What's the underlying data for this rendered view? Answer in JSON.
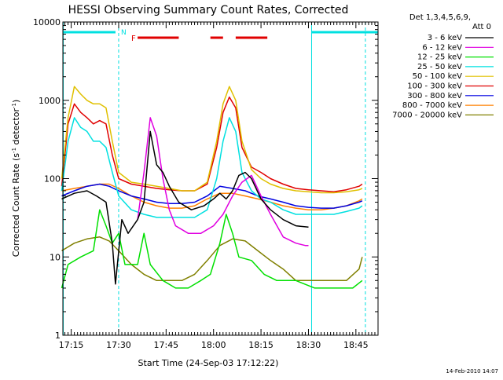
{
  "chart_data": {
    "type": "line",
    "title": "HESSI Observing Summary Count Rates, Corrected",
    "xlabel": "Start Time (24-Sep-03 17:12:22)",
    "ylabel_main": "Corrected Count Rate (s",
    "ylabel_sup1": "-1",
    "ylabel_mid": " detector",
    "ylabel_sup2": "-1",
    "ylabel_end": ")",
    "y_scale": "log",
    "ylim": [
      1,
      10000
    ],
    "xlim": [
      "17:12:22",
      "18:52:00"
    ],
    "x_ticks": [
      "17:15",
      "17:30",
      "17:45",
      "18:00",
      "18:15",
      "18:30",
      "18:45"
    ],
    "y_ticks": [
      "1",
      "10",
      "100",
      "1000",
      "10000"
    ],
    "legend_header_1": "Det 1,3,4,5,6,9,",
    "legend_header_2": "Att 0",
    "legend_position": "right",
    "timestamp": "14-Feb-2010 14:07",
    "flags": {
      "night_label": "N",
      "flare_label": "F",
      "night_color": "#00e0e0",
      "flare_color": "#e00000",
      "night_bars": [
        [
          "17:12:22",
          "17:29"
        ],
        [
          "18:31",
          "18:52"
        ]
      ],
      "flare_bars": [
        [
          "17:36",
          "17:49"
        ],
        [
          "17:59",
          "18:03"
        ],
        [
          "18:07",
          "18:17"
        ]
      ],
      "night_dashed_lines": [
        "17:30",
        "18:48"
      ],
      "boundary_solid_lines": [
        "17:12:30",
        "18:31"
      ]
    },
    "series": [
      {
        "name": "3 - 6 keV",
        "color": "#000000",
        "points": [
          [
            "17:12",
            "55"
          ],
          [
            "17:16",
            "65"
          ],
          [
            "17:20",
            "70"
          ],
          [
            "17:23",
            "60"
          ],
          [
            "17:26",
            "50"
          ],
          [
            "17:28",
            "15"
          ],
          [
            "17:29",
            "4.5"
          ],
          [
            "17:31",
            "30"
          ],
          [
            "17:33",
            "20"
          ],
          [
            "17:36",
            "30"
          ],
          [
            "17:38",
            "50"
          ],
          [
            "17:40",
            "400"
          ],
          [
            "17:42",
            "150"
          ],
          [
            "17:44",
            "120"
          ],
          [
            "17:46",
            "80"
          ],
          [
            "17:49",
            "50"
          ],
          [
            "17:53",
            "40"
          ],
          [
            "17:57",
            "45"
          ],
          [
            "18:00",
            "55"
          ],
          [
            "18:02",
            "65"
          ],
          [
            "18:04",
            "55"
          ],
          [
            "18:06",
            "70"
          ],
          [
            "18:08",
            "110"
          ],
          [
            "18:10",
            "120"
          ],
          [
            "18:12",
            "100"
          ],
          [
            "18:15",
            "55"
          ],
          [
            "18:18",
            "40"
          ],
          [
            "18:22",
            "30"
          ],
          [
            "18:26",
            "25"
          ],
          [
            "18:30",
            "24"
          ]
        ]
      },
      {
        "name": "6 - 12 keV",
        "color": "#e000e0",
        "points": [
          [
            "17:36",
            "30"
          ],
          [
            "17:38",
            "120"
          ],
          [
            "17:40",
            "600"
          ],
          [
            "17:42",
            "350"
          ],
          [
            "17:44",
            "100"
          ],
          [
            "17:46",
            "40"
          ],
          [
            "17:48",
            "25"
          ],
          [
            "17:52",
            "20"
          ],
          [
            "17:56",
            "20"
          ],
          [
            "18:00",
            "25"
          ],
          [
            "18:03",
            "35"
          ],
          [
            "18:06",
            "60"
          ],
          [
            "18:09",
            "90"
          ],
          [
            "18:12",
            "110"
          ],
          [
            "18:15",
            "60"
          ],
          [
            "18:18",
            "35"
          ],
          [
            "18:22",
            "18"
          ],
          [
            "18:26",
            "15"
          ],
          [
            "18:29",
            "14"
          ],
          [
            "18:30",
            "14"
          ]
        ]
      },
      {
        "name": "12 - 25 keV",
        "color": "#00e000",
        "points": [
          [
            "17:12",
            "4"
          ],
          [
            "17:14",
            "8"
          ],
          [
            "17:18",
            "10"
          ],
          [
            "17:22",
            "12"
          ],
          [
            "17:24",
            "40"
          ],
          [
            "17:26",
            "25"
          ],
          [
            "17:28",
            "15"
          ],
          [
            "17:30",
            "20"
          ],
          [
            "17:32",
            "8"
          ],
          [
            "17:36",
            "8"
          ],
          [
            "17:38",
            "20"
          ],
          [
            "17:40",
            "8"
          ],
          [
            "17:44",
            "5"
          ],
          [
            "17:48",
            "4"
          ],
          [
            "17:52",
            "4"
          ],
          [
            "17:56",
            "5"
          ],
          [
            "17:59",
            "6"
          ],
          [
            "18:02",
            "15"
          ],
          [
            "18:04",
            "35"
          ],
          [
            "18:06",
            "20"
          ],
          [
            "18:08",
            "10"
          ],
          [
            "18:12",
            "9"
          ],
          [
            "18:16",
            "6"
          ],
          [
            "18:20",
            "5"
          ],
          [
            "18:26",
            "5"
          ],
          [
            "18:32",
            "4"
          ],
          [
            "18:38",
            "4"
          ],
          [
            "18:44",
            "4"
          ],
          [
            "18:47",
            "5"
          ]
        ]
      },
      {
        "name": "25 - 50 keV",
        "color": "#00e0e0",
        "points": [
          [
            "17:12",
            "70"
          ],
          [
            "17:14",
            "300"
          ],
          [
            "17:16",
            "600"
          ],
          [
            "17:18",
            "450"
          ],
          [
            "17:20",
            "400"
          ],
          [
            "17:22",
            "300"
          ],
          [
            "17:24",
            "300"
          ],
          [
            "17:26",
            "250"
          ],
          [
            "17:28",
            "120"
          ],
          [
            "17:30",
            "60"
          ],
          [
            "17:34",
            "40"
          ],
          [
            "17:38",
            "35"
          ],
          [
            "17:42",
            "32"
          ],
          [
            "17:46",
            "32"
          ],
          [
            "17:50",
            "32"
          ],
          [
            "17:54",
            "32"
          ],
          [
            "17:58",
            "40"
          ],
          [
            "18:01",
            "100"
          ],
          [
            "18:03",
            "300"
          ],
          [
            "18:05",
            "600"
          ],
          [
            "18:07",
            "400"
          ],
          [
            "18:09",
            "120"
          ],
          [
            "18:12",
            "70"
          ],
          [
            "18:15",
            "55"
          ],
          [
            "18:18",
            "50"
          ],
          [
            "18:22",
            "40"
          ],
          [
            "18:26",
            "35"
          ],
          [
            "18:30",
            "35"
          ],
          [
            "18:34",
            "35"
          ],
          [
            "18:38",
            "35"
          ],
          [
            "18:42",
            "38"
          ],
          [
            "18:46",
            "42"
          ],
          [
            "18:47",
            "45"
          ]
        ]
      },
      {
        "name": "50 - 100 keV",
        "color": "#e0c000",
        "points": [
          [
            "17:12",
            "100"
          ],
          [
            "17:14",
            "600"
          ],
          [
            "17:16",
            "1500"
          ],
          [
            "17:18",
            "1200"
          ],
          [
            "17:20",
            "1000"
          ],
          [
            "17:22",
            "900"
          ],
          [
            "17:24",
            "900"
          ],
          [
            "17:26",
            "800"
          ],
          [
            "17:28",
            "300"
          ],
          [
            "17:30",
            "120"
          ],
          [
            "17:34",
            "90"
          ],
          [
            "17:38",
            "85"
          ],
          [
            "17:42",
            "80"
          ],
          [
            "17:46",
            "75"
          ],
          [
            "17:50",
            "70"
          ],
          [
            "17:54",
            "70"
          ],
          [
            "17:58",
            "90"
          ],
          [
            "18:01",
            "300"
          ],
          [
            "18:03",
            "900"
          ],
          [
            "18:05",
            "1500"
          ],
          [
            "18:07",
            "1000"
          ],
          [
            "18:09",
            "300"
          ],
          [
            "18:12",
            "130"
          ],
          [
            "18:15",
            "100"
          ],
          [
            "18:18",
            "85"
          ],
          [
            "18:22",
            "75"
          ],
          [
            "18:26",
            "70"
          ],
          [
            "18:30",
            "68"
          ],
          [
            "18:34",
            "66"
          ],
          [
            "18:38",
            "66"
          ],
          [
            "18:42",
            "68"
          ],
          [
            "18:46",
            "72"
          ],
          [
            "18:47",
            "75"
          ]
        ]
      },
      {
        "name": "100 - 300 keV",
        "color": "#e00000",
        "points": [
          [
            "17:12",
            "80"
          ],
          [
            "17:14",
            "500"
          ],
          [
            "17:16",
            "900"
          ],
          [
            "17:18",
            "700"
          ],
          [
            "17:20",
            "600"
          ],
          [
            "17:22",
            "500"
          ],
          [
            "17:24",
            "550"
          ],
          [
            "17:26",
            "500"
          ],
          [
            "17:28",
            "200"
          ],
          [
            "17:30",
            "100"
          ],
          [
            "17:34",
            "85"
          ],
          [
            "17:38",
            "80"
          ],
          [
            "17:42",
            "75"
          ],
          [
            "17:46",
            "72"
          ],
          [
            "17:50",
            "70"
          ],
          [
            "17:54",
            "70"
          ],
          [
            "17:58",
            "85"
          ],
          [
            "18:01",
            "250"
          ],
          [
            "18:03",
            "700"
          ],
          [
            "18:05",
            "1100"
          ],
          [
            "18:07",
            "800"
          ],
          [
            "18:09",
            "250"
          ],
          [
            "18:12",
            "140"
          ],
          [
            "18:15",
            "120"
          ],
          [
            "18:18",
            "100"
          ],
          [
            "18:22",
            "85"
          ],
          [
            "18:26",
            "75"
          ],
          [
            "18:30",
            "72"
          ],
          [
            "18:34",
            "70"
          ],
          [
            "18:38",
            "68"
          ],
          [
            "18:42",
            "72"
          ],
          [
            "18:46",
            "80"
          ],
          [
            "18:47",
            "85"
          ]
        ]
      },
      {
        "name": "300 - 800 keV",
        "color": "#0000e0",
        "points": [
          [
            "17:12",
            "60"
          ],
          [
            "17:16",
            "70"
          ],
          [
            "17:20",
            "80"
          ],
          [
            "17:24",
            "85"
          ],
          [
            "17:27",
            "80"
          ],
          [
            "17:30",
            "70"
          ],
          [
            "17:34",
            "60"
          ],
          [
            "17:38",
            "55"
          ],
          [
            "17:42",
            "50"
          ],
          [
            "17:46",
            "48"
          ],
          [
            "17:50",
            "48"
          ],
          [
            "17:54",
            "50"
          ],
          [
            "17:58",
            "60"
          ],
          [
            "18:02",
            "80"
          ],
          [
            "18:06",
            "75"
          ],
          [
            "18:10",
            "70"
          ],
          [
            "18:14",
            "60"
          ],
          [
            "18:18",
            "55"
          ],
          [
            "18:22",
            "50"
          ],
          [
            "18:26",
            "45"
          ],
          [
            "18:30",
            "43"
          ],
          [
            "18:34",
            "42"
          ],
          [
            "18:38",
            "42"
          ],
          [
            "18:42",
            "45"
          ],
          [
            "18:46",
            "50"
          ],
          [
            "18:47",
            "52"
          ]
        ]
      },
      {
        "name": "800 - 7000 keV",
        "color": "#ff8000",
        "points": [
          [
            "17:12",
            "70"
          ],
          [
            "17:16",
            "75"
          ],
          [
            "17:20",
            "80"
          ],
          [
            "17:24",
            "85"
          ],
          [
            "17:27",
            "85"
          ],
          [
            "17:30",
            "75"
          ],
          [
            "17:34",
            "60"
          ],
          [
            "17:38",
            "50"
          ],
          [
            "17:42",
            "45"
          ],
          [
            "17:46",
            "42"
          ],
          [
            "17:50",
            "42"
          ],
          [
            "17:54",
            "45"
          ],
          [
            "17:58",
            "55"
          ],
          [
            "18:02",
            "65"
          ],
          [
            "18:06",
            "65"
          ],
          [
            "18:10",
            "60"
          ],
          [
            "18:14",
            "55"
          ],
          [
            "18:18",
            "50"
          ],
          [
            "18:22",
            "45"
          ],
          [
            "18:26",
            "42"
          ],
          [
            "18:30",
            "40"
          ],
          [
            "18:34",
            "40"
          ],
          [
            "18:38",
            "42"
          ],
          [
            "18:42",
            "45"
          ],
          [
            "18:46",
            "52"
          ],
          [
            "18:47",
            "55"
          ]
        ]
      },
      {
        "name": "7000 - 20000 keV",
        "color": "#808000",
        "points": [
          [
            "17:12",
            "12"
          ],
          [
            "17:16",
            "15"
          ],
          [
            "17:20",
            "17"
          ],
          [
            "17:24",
            "18"
          ],
          [
            "17:27",
            "16"
          ],
          [
            "17:30",
            "12"
          ],
          [
            "17:34",
            "8"
          ],
          [
            "17:38",
            "6"
          ],
          [
            "17:42",
            "5"
          ],
          [
            "17:46",
            "5"
          ],
          [
            "17:50",
            "5"
          ],
          [
            "17:54",
            "6"
          ],
          [
            "17:58",
            "9"
          ],
          [
            "18:02",
            "14"
          ],
          [
            "18:06",
            "17"
          ],
          [
            "18:10",
            "16"
          ],
          [
            "18:14",
            "12"
          ],
          [
            "18:18",
            "9"
          ],
          [
            "18:22",
            "7"
          ],
          [
            "18:26",
            "5"
          ],
          [
            "18:30",
            "5"
          ],
          [
            "18:34",
            "5"
          ],
          [
            "18:38",
            "5"
          ],
          [
            "18:42",
            "5"
          ],
          [
            "18:46",
            "7"
          ],
          [
            "18:47",
            "10"
          ]
        ]
      }
    ]
  }
}
